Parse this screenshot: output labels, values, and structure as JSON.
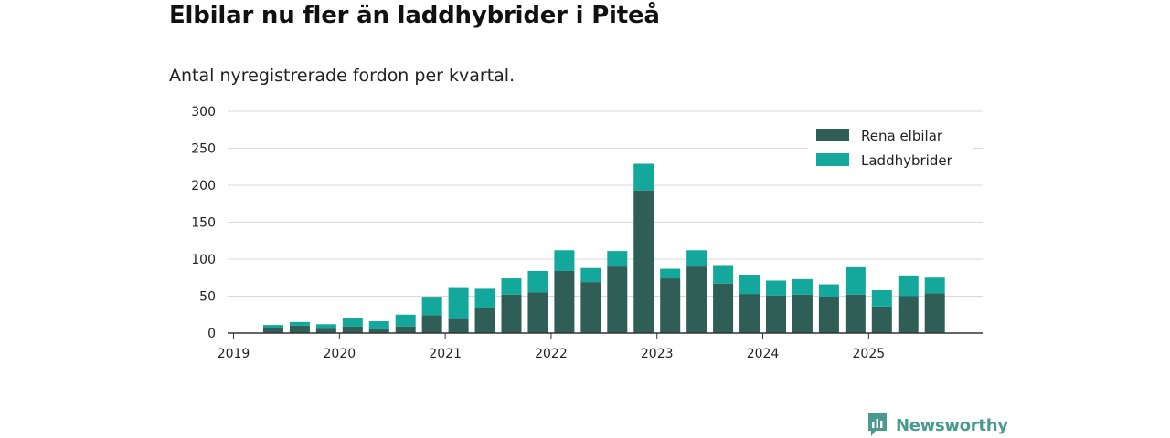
{
  "title": "Elbilar nu fler än laddhybrider i Piteå",
  "subtitle": "Antal nyregistrerade fordon per kvartal.",
  "brand": {
    "name": "Newsworthy",
    "icon": "newsworthy-logo-icon"
  },
  "colors": {
    "elbilar": "#2f5e57",
    "laddhybrider": "#14a79c",
    "grid": "#d9d9d9",
    "axis": "#333333",
    "brand": "#4a9a90"
  },
  "chart_data": {
    "type": "bar",
    "stacked": true,
    "title": "Elbilar nu fler än laddhybrider i Piteå",
    "subtitle": "Antal nyregistrerade fordon per kvartal.",
    "xlabel": "",
    "ylabel": "",
    "ylim": [
      0,
      300
    ],
    "yticks": [
      0,
      50,
      100,
      150,
      200,
      250,
      300
    ],
    "grid": true,
    "legend_position": "top-right",
    "categories": [
      "2019 Q1",
      "2019 Q2",
      "2019 Q3",
      "2019 Q4",
      "2020 Q1",
      "2020 Q2",
      "2020 Q3",
      "2020 Q4",
      "2021 Q1",
      "2021 Q2",
      "2021 Q3",
      "2021 Q4",
      "2022 Q1",
      "2022 Q2",
      "2022 Q3",
      "2022 Q4",
      "2023 Q1",
      "2023 Q2",
      "2023 Q3",
      "2023 Q4",
      "2024 Q1",
      "2024 Q2",
      "2024 Q3",
      "2024 Q4",
      "2025 Q1",
      "2025 Q2",
      "2025 Q3"
    ],
    "x_tick_labels": [
      "2019",
      "2020",
      "2021",
      "2022",
      "2023",
      "2024",
      "2025"
    ],
    "series": [
      {
        "name": "Rena elbilar",
        "values": [
          0,
          7,
          10,
          6,
          9,
          5,
          9,
          24,
          19,
          34,
          52,
          55,
          84,
          69,
          90,
          193,
          74,
          90,
          67,
          53,
          51,
          52,
          49,
          52,
          36,
          50,
          54
        ]
      },
      {
        "name": "Laddhybrider",
        "values": [
          0,
          4,
          5,
          6,
          11,
          11,
          16,
          24,
          42,
          26,
          22,
          29,
          28,
          19,
          21,
          36,
          13,
          22,
          25,
          26,
          20,
          21,
          17,
          37,
          22,
          28,
          21
        ]
      }
    ]
  }
}
